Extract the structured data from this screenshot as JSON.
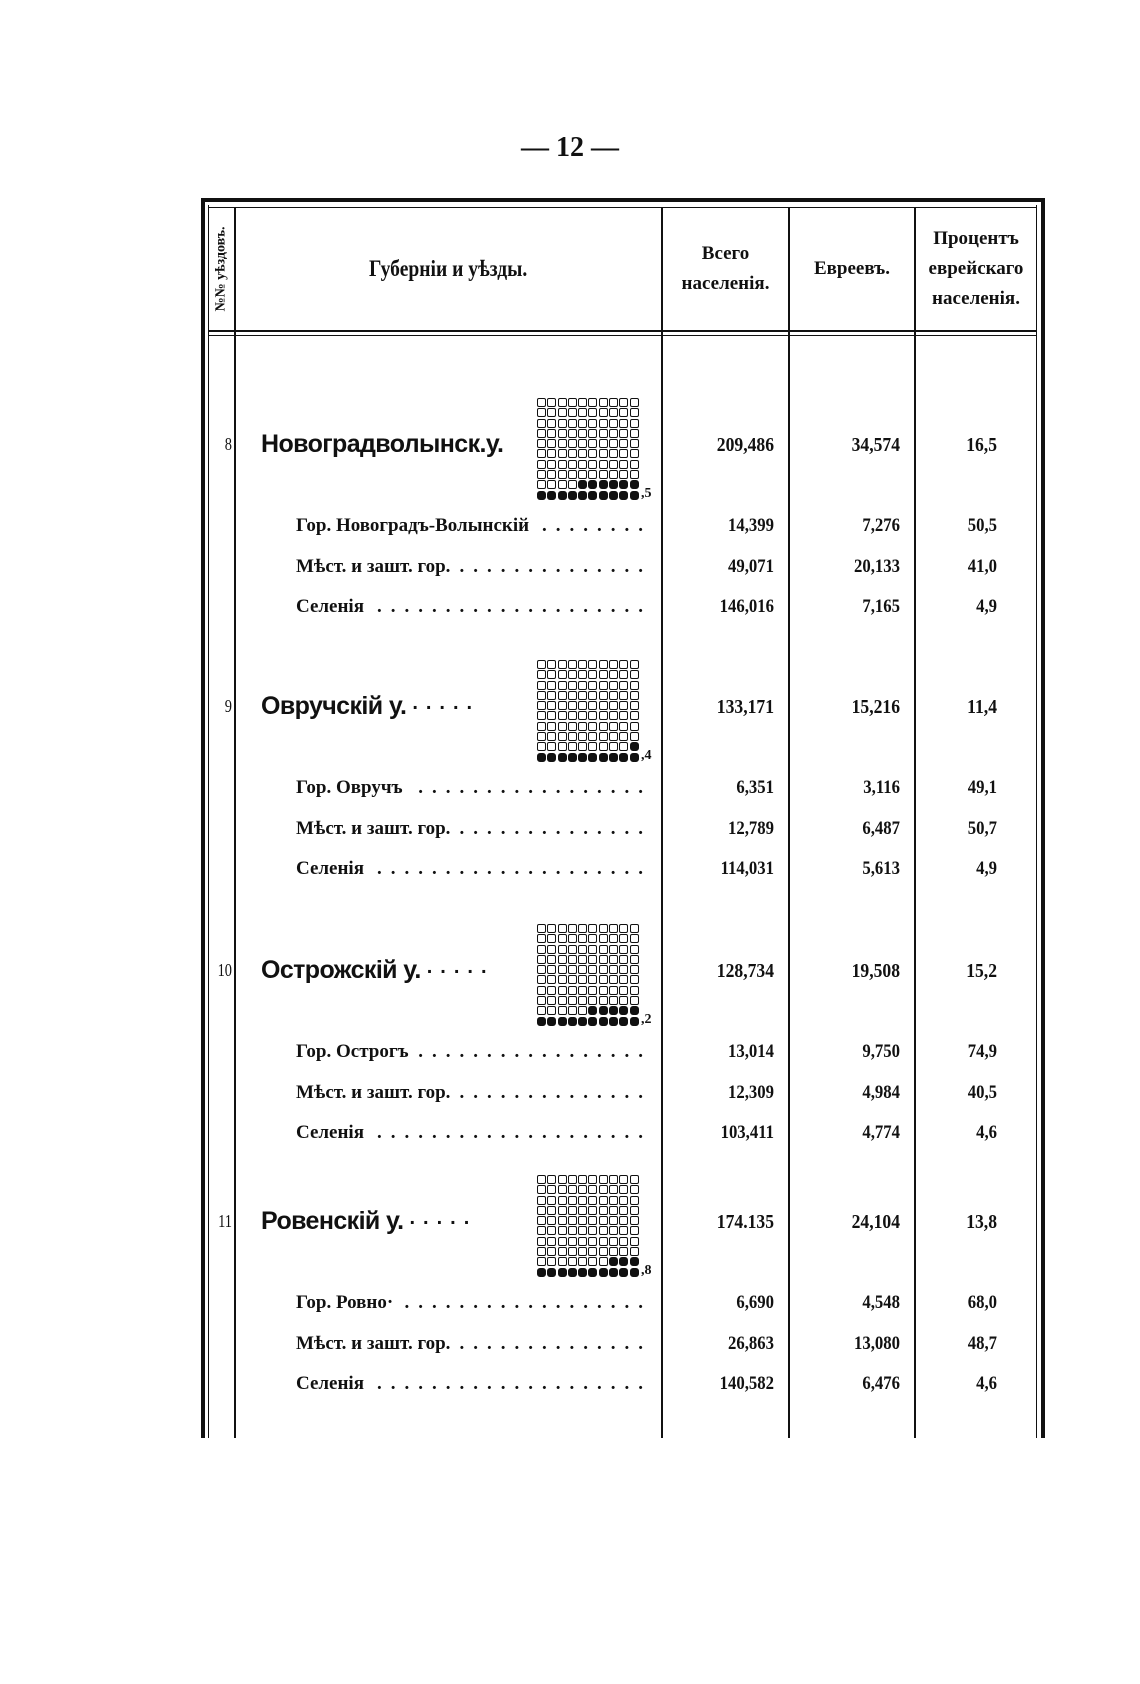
{
  "page_number": "— 12 —",
  "table": {
    "headers": {
      "index": "№№ уѣздовъ.",
      "name": "Губерніи и уѣзды.",
      "total": [
        "Всего",
        "населенія."
      ],
      "jews": "Евреевъ.",
      "percent": [
        "Процентъ",
        "еврейскаго",
        "населенія."
      ]
    },
    "districts": [
      {
        "index": "8",
        "name": "Новоградволынск.у.",
        "total": "209,486",
        "jews": "34,574",
        "percent": "16,5",
        "pictogram_percent": 16.5,
        "pictogram_decimal": ",5",
        "rows": [
          {
            "name": "Гор. Новоградъ-Волынскій",
            "total": "14,399",
            "jews": "7,276",
            "percent": "50,5"
          },
          {
            "name": "Мѣст. и зашт. гор.",
            "total": "49,071",
            "jews": "20,133",
            "percent": "41,0"
          },
          {
            "name": "Селенія",
            "total": "146,016",
            "jews": "7,165",
            "percent": "4,9"
          }
        ]
      },
      {
        "index": "9",
        "name": "Овручскій у.",
        "total": "133,171",
        "jews": "15,216",
        "percent": "11,4",
        "pictogram_percent": 11.4,
        "pictogram_decimal": ",4",
        "rows": [
          {
            "name": "Гор. Овручъ",
            "total": "6,351",
            "jews": "3,116",
            "percent": "49,1"
          },
          {
            "name": "Мѣст. и зашт. гор.",
            "total": "12,789",
            "jews": "6,487",
            "percent": "50,7"
          },
          {
            "name": "Селенія",
            "total": "114,031",
            "jews": "5,613",
            "percent": "4,9"
          }
        ]
      },
      {
        "index": "10",
        "name": "Острожскій у.",
        "total": "128,734",
        "jews": "19,508",
        "percent": "15,2",
        "pictogram_percent": 15.2,
        "pictogram_decimal": ",2",
        "rows": [
          {
            "name": "Гор. Острогъ",
            "total": "13,014",
            "jews": "9,750",
            "percent": "74,9"
          },
          {
            "name": "Мѣст. и зашт. гор.",
            "total": "12,309",
            "jews": "4,984",
            "percent": "40,5"
          },
          {
            "name": "Селенія",
            "total": "103,411",
            "jews": "4,774",
            "percent": "4,6"
          }
        ]
      },
      {
        "index": "11",
        "name": "Ровенскій у.",
        "total": "174.135",
        "jews": "24,104",
        "percent": "13,8",
        "pictogram_percent": 13.8,
        "pictogram_decimal": ",8",
        "rows": [
          {
            "name": "Гор. Ровно·",
            "total": "6,690",
            "jews": "4,548",
            "percent": "68,0"
          },
          {
            "name": "Мѣст. и зашт. гор.",
            "total": "26,863",
            "jews": "13,080",
            "percent": "48,7"
          },
          {
            "name": "Селенія",
            "total": "140,582",
            "jews": "6,476",
            "percent": "4,6"
          }
        ]
      }
    ]
  }
}
